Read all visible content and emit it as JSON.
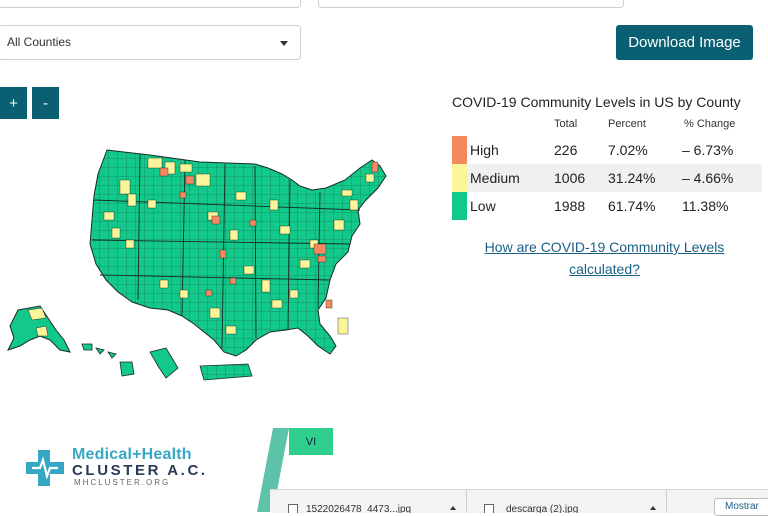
{
  "filters": {
    "county_select": "All Counties"
  },
  "toolbar": {
    "download_label": "Download Image",
    "zoom_in": "+",
    "zoom_out": "-"
  },
  "legend": {
    "title": "COVID-19 Community Levels in US by County",
    "headers": {
      "total": "Total",
      "percent": "Percent",
      "change": "% Change"
    },
    "rows": [
      {
        "label": "High",
        "total": "226",
        "percent": "7.02%",
        "change": "– 6.73%",
        "color": "#f4895f"
      },
      {
        "label": "Medium",
        "total": "1006",
        "percent": "31.24%",
        "change": "– 4.66%",
        "color": "#fbf59a"
      },
      {
        "label": "Low",
        "total": "1988",
        "percent": "61.74%",
        "change": "11.38%",
        "color": "#12c98a"
      }
    ],
    "link_line1": "How are COVID-19 Community Levels",
    "link_line2": "calculated?"
  },
  "map": {
    "low_color": "#12c98a",
    "medium_color": "#fbf59a",
    "high_color": "#f4895f",
    "border_color": "#1a2a2a"
  },
  "logo": {
    "line1": "Medical+Health",
    "line2": "CLUSTER A.C.",
    "line3": "MHCLUSTER.ORG"
  },
  "overlay": {
    "vi_label": "VI"
  },
  "downloads": {
    "item1": "1522026478_4473...jpg",
    "item2": "descarga (2).jpg",
    "show_all": "Mostrar"
  }
}
